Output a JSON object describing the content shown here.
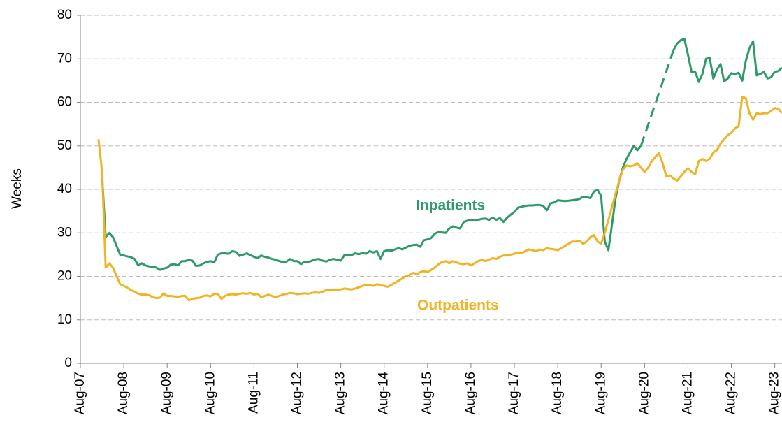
{
  "chart_data": {
    "type": "line",
    "y_label": "Weeks",
    "grid": true,
    "ylim": [
      0,
      80
    ],
    "yticks": [
      0,
      10,
      20,
      30,
      40,
      50,
      60,
      70,
      80
    ],
    "xlim": [
      "2007-08",
      "2023-10"
    ],
    "xticks": [
      {
        "value": "2007-08",
        "label": "Aug-07"
      },
      {
        "value": "2008-08",
        "label": "Aug-08"
      },
      {
        "value": "2009-08",
        "label": "Aug-09"
      },
      {
        "value": "2010-08",
        "label": "Aug-10"
      },
      {
        "value": "2011-08",
        "label": "Aug-11"
      },
      {
        "value": "2012-08",
        "label": "Aug-12"
      },
      {
        "value": "2013-08",
        "label": "Aug-13"
      },
      {
        "value": "2014-08",
        "label": "Aug-14"
      },
      {
        "value": "2015-08",
        "label": "Aug-15"
      },
      {
        "value": "2016-08",
        "label": "Aug-16"
      },
      {
        "value": "2017-08",
        "label": "Aug-17"
      },
      {
        "value": "2018-08",
        "label": "Aug-18"
      },
      {
        "value": "2019-08",
        "label": "Aug-19"
      },
      {
        "value": "2020-08",
        "label": "Aug-20"
      },
      {
        "value": "2021-08",
        "label": "Aug-21"
      },
      {
        "value": "2022-08",
        "label": "Aug-22"
      },
      {
        "value": "2023-08",
        "label": "Aug-23"
      }
    ],
    "x": [
      "2008-01",
      "2008-02",
      "2008-03",
      "2008-04",
      "2008-05",
      "2008-06",
      "2008-07",
      "2008-08",
      "2008-09",
      "2008-10",
      "2008-11",
      "2008-12",
      "2009-01",
      "2009-02",
      "2009-03",
      "2009-04",
      "2009-05",
      "2009-06",
      "2009-07",
      "2009-08",
      "2009-09",
      "2009-10",
      "2009-11",
      "2009-12",
      "2010-01",
      "2010-02",
      "2010-03",
      "2010-04",
      "2010-05",
      "2010-06",
      "2010-07",
      "2010-08",
      "2010-09",
      "2010-10",
      "2010-11",
      "2010-12",
      "2011-01",
      "2011-02",
      "2011-03",
      "2011-04",
      "2011-05",
      "2011-06",
      "2011-07",
      "2011-08",
      "2011-09",
      "2011-10",
      "2011-11",
      "2011-12",
      "2012-01",
      "2012-02",
      "2012-03",
      "2012-04",
      "2012-05",
      "2012-06",
      "2012-07",
      "2012-08",
      "2012-09",
      "2012-10",
      "2012-11",
      "2012-12",
      "2013-01",
      "2013-02",
      "2013-03",
      "2013-04",
      "2013-05",
      "2013-06",
      "2013-07",
      "2013-08",
      "2013-09",
      "2013-10",
      "2013-11",
      "2013-12",
      "2014-01",
      "2014-02",
      "2014-03",
      "2014-04",
      "2014-05",
      "2014-06",
      "2014-07",
      "2014-08",
      "2014-09",
      "2014-10",
      "2014-11",
      "2014-12",
      "2015-01",
      "2015-02",
      "2015-03",
      "2015-04",
      "2015-05",
      "2015-06",
      "2015-07",
      "2015-08",
      "2015-09",
      "2015-10",
      "2015-11",
      "2015-12",
      "2016-01",
      "2016-02",
      "2016-03",
      "2016-04",
      "2016-05",
      "2016-06",
      "2016-07",
      "2016-08",
      "2016-09",
      "2016-10",
      "2016-11",
      "2016-12",
      "2017-01",
      "2017-02",
      "2017-03",
      "2017-04",
      "2017-05",
      "2017-06",
      "2017-07",
      "2017-08",
      "2017-09",
      "2017-10",
      "2017-11",
      "2017-12",
      "2018-01",
      "2018-02",
      "2018-03",
      "2018-04",
      "2018-05",
      "2018-06",
      "2018-07",
      "2018-08",
      "2018-09",
      "2018-10",
      "2018-11",
      "2018-12",
      "2019-01",
      "2019-02",
      "2019-03",
      "2019-04",
      "2019-05",
      "2019-06",
      "2019-07",
      "2019-08",
      "2019-09",
      "2019-10",
      "2019-11",
      "2019-12",
      "2020-01",
      "2020-02",
      "2020-03",
      "2020-04",
      "2020-05",
      "2020-06",
      "2020-07",
      "2020-08",
      "2020-09",
      "2020-10",
      "2020-11",
      "2020-12",
      "2021-01",
      "2021-02",
      "2021-03",
      "2021-04",
      "2021-05",
      "2021-06",
      "2021-07",
      "2021-08",
      "2021-09",
      "2021-10",
      "2021-11",
      "2021-12",
      "2022-01",
      "2022-02",
      "2022-03",
      "2022-04",
      "2022-05",
      "2022-06",
      "2022-07",
      "2022-08",
      "2022-09",
      "2022-10",
      "2022-11",
      "2022-12",
      "2023-01",
      "2023-02",
      "2023-03",
      "2023-04",
      "2023-05",
      "2023-06",
      "2023-07",
      "2023-08",
      "2023-09",
      "2023-10"
    ],
    "series": [
      {
        "name": "Inpatients",
        "color": "#2e9a6a",
        "gap_style": "dashed",
        "values": [
          null,
          43,
          29,
          30,
          29,
          27,
          25,
          24.8,
          24.6,
          24.4,
          24,
          22.5,
          23,
          22.5,
          22.3,
          22.2,
          22,
          21.5,
          21.8,
          22,
          22.7,
          22.8,
          22.5,
          23.5,
          23.5,
          23.8,
          23.6,
          22.4,
          22.5,
          23,
          23.3,
          23.5,
          23.2,
          25,
          25.3,
          25.3,
          25.2,
          25.8,
          25.6,
          24.7,
          25,
          25.3,
          24.9,
          24.5,
          24.2,
          24.8,
          24.5,
          24.3,
          24,
          23.8,
          23.5,
          23.3,
          23.4,
          24,
          23.5,
          23.5,
          22.8,
          23.4,
          23.3,
          23.6,
          23.9,
          24,
          23.6,
          23.4,
          23.8,
          24,
          23.8,
          23.6,
          24.9,
          25,
          24.9,
          25.3,
          25.1,
          25.4,
          25.2,
          25.8,
          25.5,
          25.8,
          24,
          25.8,
          26,
          25.9,
          26.2,
          26.5,
          26.2,
          26.6,
          27,
          27.2,
          27.3,
          26.8,
          28.3,
          28.5,
          28.8,
          29.8,
          30.2,
          30.1,
          30,
          31,
          31.5,
          31.2,
          31,
          32.5,
          32.8,
          33,
          32.8,
          33,
          33.2,
          33.3,
          33,
          33.5,
          33,
          33.4,
          32.5,
          33.5,
          34.2,
          34.8,
          35.8,
          36,
          36.2,
          36.3,
          36.3,
          36.4,
          36.4,
          36.2,
          35.2,
          36.8,
          37,
          37.5,
          37.4,
          37.3,
          37.4,
          37.5,
          37.6,
          37.8,
          38.3,
          38.2,
          38,
          39.5,
          39.9,
          38.5,
          28,
          26,
          32,
          38,
          42,
          45,
          47,
          48.5,
          50,
          49,
          50,
          null,
          null,
          null,
          null,
          null,
          null,
          null,
          null,
          72,
          73.5,
          74.3,
          74.6,
          71,
          67,
          67,
          64.7,
          66.5,
          70,
          70.3,
          65.5,
          67.5,
          68.8,
          64.8,
          65.5,
          66.7,
          66.5,
          66.8,
          65,
          69.5,
          72.5,
          74,
          66.2,
          66.5,
          67,
          65.5,
          65.8,
          67,
          67.2,
          68
        ]
      },
      {
        "name": "Outpatients",
        "color": "#f0b323",
        "values": [
          51.5,
          44,
          22,
          23,
          22,
          20,
          18.2,
          17.8,
          17.4,
          16.8,
          16.5,
          16,
          15.8,
          15.8,
          15.7,
          15.2,
          15,
          15.1,
          16.1,
          15.5,
          15.5,
          15.4,
          15.2,
          15.5,
          15.5,
          14.5,
          14.8,
          15,
          15.1,
          15.5,
          15.6,
          15.4,
          16,
          16,
          14.8,
          15.5,
          15.8,
          15.9,
          15.8,
          16,
          16.1,
          16,
          16.2,
          15.8,
          16,
          15.2,
          15.5,
          15.8,
          15.5,
          15.2,
          15.5,
          15.8,
          16,
          16.2,
          16.1,
          15.9,
          16,
          16.1,
          16,
          16.2,
          16.3,
          16.2,
          16.5,
          16.8,
          16.8,
          17,
          16.8,
          17,
          17.2,
          17.1,
          17,
          17.2,
          17.5,
          17.8,
          18,
          18,
          17.8,
          18.2,
          18,
          17.8,
          17.6,
          18,
          18.5,
          19,
          19.5,
          20,
          20.3,
          20.8,
          20.5,
          21,
          21.2,
          21,
          21.5,
          22,
          22.8,
          23.3,
          23.5,
          23,
          23.5,
          23.2,
          22.9,
          22.8,
          23,
          22.5,
          23,
          23.5,
          23.8,
          23.5,
          23.8,
          24.2,
          24,
          24.5,
          24.8,
          24.8,
          25,
          25.2,
          25.5,
          25.3,
          25.8,
          26.2,
          26,
          25.8,
          26.2,
          26,
          26.5,
          26.3,
          26.2,
          26,
          26.5,
          27,
          27.5,
          28,
          28,
          28.2,
          27.5,
          28,
          29,
          29.5,
          28,
          27.5,
          30,
          33,
          36,
          39,
          42,
          44.5,
          45.5,
          45.3,
          45.5,
          46,
          45,
          44,
          45,
          46.5,
          47.5,
          48.3,
          46,
          43,
          43.2,
          42.5,
          42,
          43,
          44,
          44.8,
          44,
          43.5,
          46.5,
          47,
          46.5,
          47,
          48.5,
          49,
          50.5,
          51.5,
          52.5,
          53,
          54,
          54.5,
          61.2,
          61,
          57.5,
          56,
          57.5,
          57.3,
          57.5,
          57.5,
          58,
          58.7,
          58.5,
          57.5
        ]
      }
    ],
    "annotations": [
      {
        "series": 0
      },
      {
        "series": 1
      }
    ]
  }
}
